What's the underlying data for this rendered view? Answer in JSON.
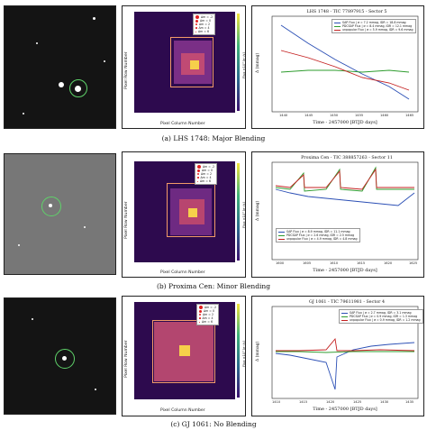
{
  "figure": {
    "rows": [
      {
        "caption": "(a) LHS 1748: Major Blending",
        "lc_title": "LHS 1748 - TIC 77897915 - Sector 5",
        "lc_xlabel": "Time - 2457000 [BTJD days]",
        "lc_ylabel": "Δ (mmag)",
        "lc_xticks": [
          "1440",
          "1445",
          "1450",
          "1455",
          "1460",
          "1465"
        ],
        "lc_yticks": [
          "20",
          "15",
          "10",
          "5",
          "0",
          "-5",
          "-10",
          "-15",
          "-20"
        ],
        "legend": [
          {
            "label": "SAP Flux | σ = 7.2 mmag, IDR = 18.8 mmag",
            "color": "#2b4fb5"
          },
          {
            "label": "PDCSAP Flux | σ = 8.4 mmag, IDR = 12.1 mmag",
            "color": "#2e9c2e"
          },
          {
            "label": "unpopular Flux | σ = 5.9 mmag, IDR = 9.6 mmag",
            "color": "#c42020"
          }
        ],
        "tpf_title": "",
        "tpf_xlabel": "Pixel Column Number",
        "tpf_ylabel": "Pixel Row Number",
        "cbar_label": "Flux ×10³ [e⁻/s]",
        "markers": [
          "Δm = -2",
          "Δm = 0",
          "Δm = 2",
          "Δm = 4",
          "Δm = 6"
        ]
      },
      {
        "caption": "(b) Proxima Cen: Minor Blending",
        "lc_title": "Proxima Cen - TIC 388857263 - Sector 11",
        "lc_xlabel": "Time - 2457000 [BTJD days]",
        "lc_ylabel": "Δ (mmag)",
        "lc_xticks": [
          "1600",
          "1605",
          "1610",
          "1615",
          "1620",
          "1625"
        ],
        "lc_yticks": [
          "-200",
          "-150",
          "-100",
          "-50",
          "0",
          "50"
        ],
        "legend": [
          {
            "label": "SAP Flux | σ = 8.9 mmag, IDR = 11.1 mmag",
            "color": "#2b4fb5"
          },
          {
            "label": "PDCSAP Flux | σ = 2.6 mmag, IDR = 2.5 mmag",
            "color": "#2e9c2e"
          },
          {
            "label": "unpopular Flux | σ = 4.9 mmag, IDR = 4.8 mmag",
            "color": "#c42020"
          }
        ],
        "tpf_xlabel": "Pixel Column Number",
        "tpf_ylabel": "Pixel Row Number",
        "cbar_label": "Flux ×10³ [e⁻/s]",
        "markers": [
          "Δm = -2",
          "Δm = 0",
          "Δm = 2",
          "Δm = 4",
          "Δm = 6"
        ]
      },
      {
        "caption": "(c) GJ 1061: No Blending",
        "lc_title": "GJ 1061 - TIC 79611981 - Sector 4",
        "lc_xlabel": "Time - 2457000 [BTJD days]",
        "lc_ylabel": "Δ (mmag)",
        "lc_xticks": [
          "1410",
          "1415",
          "1420",
          "1425",
          "1430",
          "1435"
        ],
        "lc_yticks": [
          "10.0",
          "7.5",
          "5.0",
          "2.5",
          "0.0",
          "-2.5",
          "-5.0",
          "-7.5",
          "-10.0"
        ],
        "legend": [
          {
            "label": "SAP Flux | σ = 2.7 mmag, IDR = 3.1 mmag",
            "color": "#2b4fb5"
          },
          {
            "label": "PDCSAP Flux | σ = 0.9 mmag, IDR = 1.3 mmag",
            "color": "#2e9c2e"
          },
          {
            "label": "unpopular Flux | σ = 0.9 mmag, IDR = 1.2 mmag",
            "color": "#c42020"
          }
        ],
        "tpf_xlabel": "Pixel Column Number",
        "tpf_ylabel": "Pixel Row Number",
        "cbar_label": "Flux ×10³ [e⁻/s]",
        "markers": [
          "Δm = -2",
          "Δm = 0",
          "Δm = 2",
          "Δm = 4",
          "Δm = 6"
        ]
      }
    ]
  },
  "colors": {
    "ring": "#5fd36a",
    "sap": "#2b4fb5",
    "pdcsap": "#2e9c2e",
    "unpopular": "#c42020",
    "aperture": "#f29b68"
  }
}
